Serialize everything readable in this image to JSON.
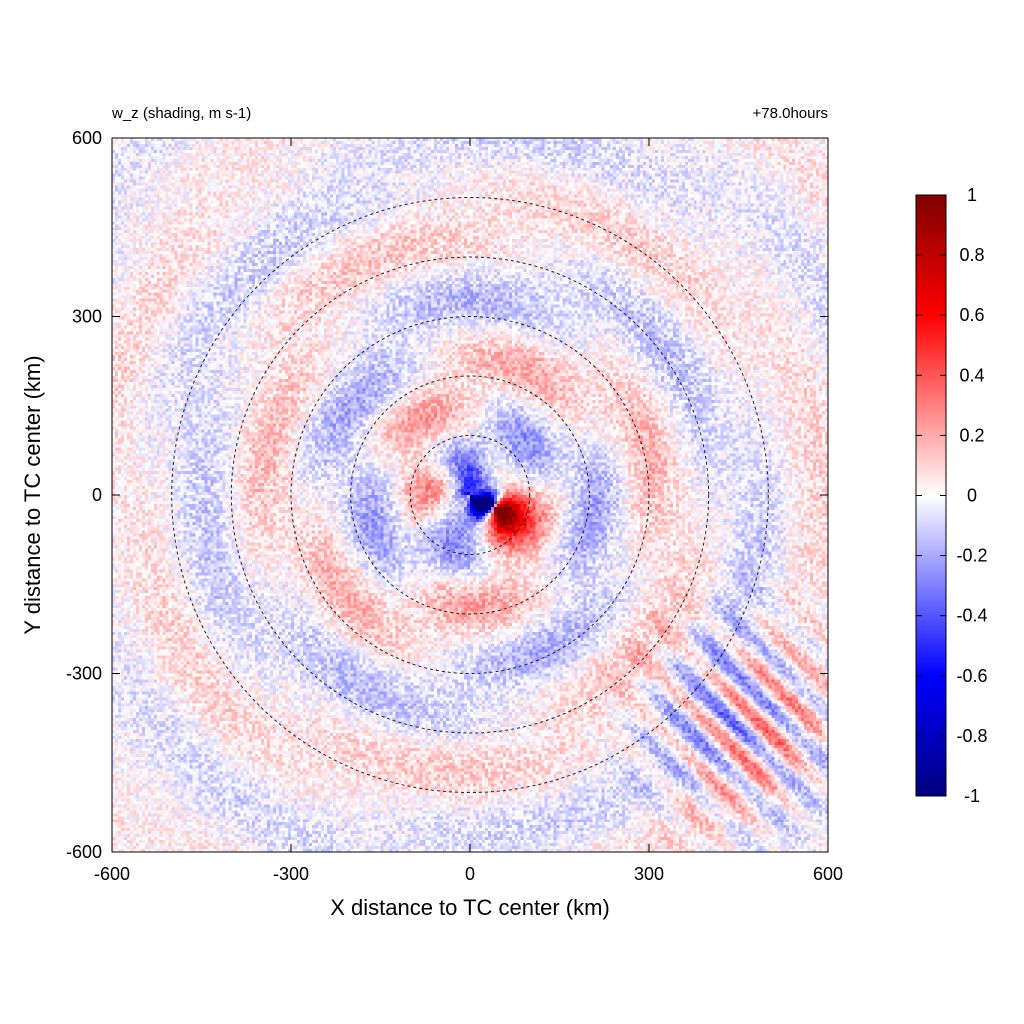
{
  "chart_data": {
    "type": "heatmap",
    "title_left": "w_z (shading, m s-1)",
    "title_right": "+78.0hours",
    "xlabel": "X distance to TC center (km)",
    "ylabel": "Y distance to TC center (km)",
    "xlim": [
      -600,
      600
    ],
    "ylim": [
      -600,
      600
    ],
    "xticks": [
      -600,
      -300,
      0,
      300,
      600
    ],
    "yticks": [
      -600,
      -300,
      0,
      300,
      600
    ],
    "x_tick_labels": [
      "-600",
      "-300",
      "0",
      "300",
      "600"
    ],
    "y_tick_labels": [
      "-600",
      "-300",
      "0",
      "300",
      "600"
    ],
    "range_rings_km": [
      100,
      200,
      300,
      400,
      500
    ],
    "ring_style": "dashed",
    "colorbar": {
      "range": [
        -1,
        1
      ],
      "ticks": [
        1,
        0.8,
        0.6,
        0.4,
        0.2,
        0,
        -0.2,
        -0.4,
        -0.6,
        -0.8,
        -1
      ],
      "tick_labels": [
        "1",
        "0.8",
        "0.6",
        "0.4",
        "0.2",
        "0",
        "-0.2",
        "-0.4",
        "-0.6",
        "-0.8",
        "-1"
      ],
      "colors": {
        "min": "#00007f",
        "mid_low": "#0000ff",
        "zero": "#ffffff",
        "mid_high": "#ff0000",
        "max": "#7f0000"
      }
    },
    "field_description_features": {
      "core_center_km": [
        40,
        -20
      ],
      "core_max_abs": 1.0
    }
  }
}
